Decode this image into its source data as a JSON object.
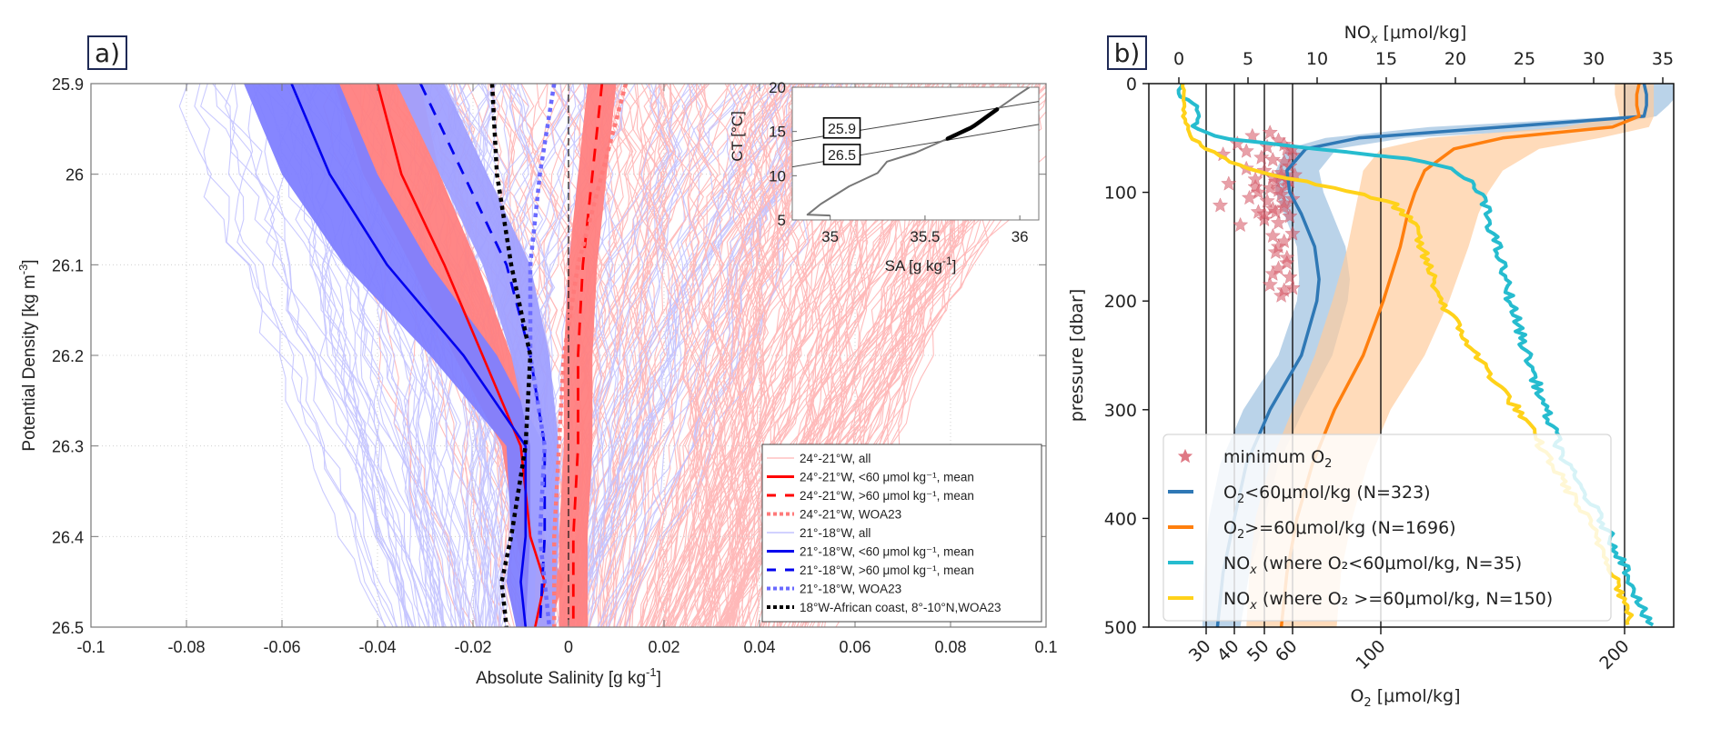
{
  "chart_data": [
    {
      "panel": "a)",
      "type": "line",
      "xlabel": "Absolute Salinity [g kg⁻¹]",
      "xlabel_main": "Absolute Salinity [g kg",
      "xlabel_sup": "-1",
      "ylabel_main": "Potential Density [kg m",
      "ylabel_sup": "-3",
      "xlim": [
        -0.1,
        0.1
      ],
      "ylim": [
        26.5,
        25.9
      ],
      "xticks": [
        -0.1,
        -0.08,
        -0.06,
        -0.04,
        -0.02,
        0,
        0.02,
        0.04,
        0.06,
        0.08,
        0.1
      ],
      "xtick_labels": [
        "-0.1",
        "-0.08",
        "-0.06",
        "-0.04",
        "-0.02",
        "0",
        "0.02",
        "0.04",
        "0.06",
        "0.08",
        "0.1"
      ],
      "yticks": [
        25.9,
        26.0,
        26.1,
        26.2,
        26.3,
        26.4,
        26.5
      ],
      "ytick_labels": [
        "25.9",
        "26",
        "26.1",
        "26.2",
        "26.3",
        "26.4",
        "26.5"
      ],
      "grid": true,
      "zero_line": 0,
      "legend_position": "bottom-right",
      "legend": [
        {
          "label": "24°-21°W, all",
          "color": "#ffb3b3",
          "style": "thin"
        },
        {
          "label": "24°-21°W, <60 μmol kg⁻¹, mean",
          "color": "#ff0000",
          "style": "solid"
        },
        {
          "label": "24°-21°W, >60 μmol kg⁻¹, mean",
          "color": "#ff0000",
          "style": "dashed"
        },
        {
          "label": "24°-21°W, WOA23",
          "color": "#ff7a7a",
          "style": "dotted"
        },
        {
          "label": "21°-18°W, all",
          "color": "#b8b8ff",
          "style": "thin"
        },
        {
          "label": "21°-18°W, <60 μmol kg⁻¹, mean",
          "color": "#0000ee",
          "style": "solid"
        },
        {
          "label": "21°-18°W, >60 μmol kg⁻¹, mean",
          "color": "#0000ee",
          "style": "dashed"
        },
        {
          "label": "21°-18°W, WOA23",
          "color": "#6a6aff",
          "style": "dotted"
        },
        {
          "label": "18°W-African coast, 8°-10°N,WOA23",
          "color": "#000000",
          "style": "dotted"
        }
      ],
      "series": [
        {
          "name": "24-21W <60 mean",
          "color": "#ff0000",
          "style": "solid",
          "band_color": "#ff8080",
          "density": [
            25.9,
            26.0,
            26.1,
            26.2,
            26.3,
            26.4,
            26.45,
            26.5
          ],
          "sa": [
            -0.04,
            -0.035,
            -0.026,
            -0.018,
            -0.01,
            -0.008,
            -0.005,
            -0.007
          ],
          "band_halfwidth": [
            0.009,
            0.008,
            0.007,
            0.006,
            0.004,
            0.003,
            0.004,
            0.003
          ]
        },
        {
          "name": "24-21W >60 mean",
          "color": "#ff0000",
          "style": "dashed",
          "band_color": "#ff8080",
          "density": [
            25.9,
            26.0,
            26.1,
            26.2,
            26.3,
            26.4,
            26.5
          ],
          "sa": [
            0.007,
            0.005,
            0.003,
            0.002,
            0.002,
            0.001,
            0.001
          ],
          "band_halfwidth": [
            0.003,
            0.003,
            0.003,
            0.003,
            0.003,
            0.003,
            0.003
          ]
        },
        {
          "name": "24-21W WOA23",
          "color": "#ff7a7a",
          "style": "dotted",
          "density": [
            25.9,
            26.0,
            26.1,
            26.2,
            26.3,
            26.4,
            26.5
          ],
          "sa": [
            0.012,
            0.007,
            0.002,
            -0.001,
            -0.002,
            -0.003,
            -0.003
          ]
        },
        {
          "name": "21-18W <60 mean",
          "color": "#0000ee",
          "style": "solid",
          "band_color": "#8080ff",
          "density": [
            25.9,
            26.0,
            26.1,
            26.2,
            26.3,
            26.4,
            26.45,
            26.5
          ],
          "sa": [
            -0.058,
            -0.05,
            -0.038,
            -0.022,
            -0.009,
            -0.009,
            -0.01,
            -0.009
          ],
          "band_halfwidth": [
            0.01,
            0.01,
            0.009,
            0.007,
            0.004,
            0.003,
            0.003,
            0.002
          ]
        },
        {
          "name": "21-18W >60 mean",
          "color": "#0000ee",
          "style": "dashed",
          "band_color": "#a0a0ff",
          "density": [
            25.9,
            26.0,
            26.1,
            26.2,
            26.3,
            26.4,
            26.5
          ],
          "sa": [
            -0.031,
            -0.022,
            -0.013,
            -0.008,
            -0.005,
            -0.005,
            -0.006
          ],
          "band_halfwidth": [
            0.005,
            0.005,
            0.005,
            0.004,
            0.003,
            0.003,
            0.003
          ]
        },
        {
          "name": "21-18W WOA23",
          "color": "#6a6aff",
          "style": "dotted",
          "density": [
            25.9,
            26.0,
            26.1,
            26.2,
            26.3,
            26.4,
            26.5
          ],
          "sa": [
            -0.003,
            -0.006,
            -0.008,
            -0.008,
            -0.005,
            -0.006,
            -0.004
          ]
        },
        {
          "name": "18W-African coast WOA23",
          "color": "#000000",
          "style": "dotted",
          "density": [
            25.9,
            26.0,
            26.1,
            26.2,
            26.3,
            26.4,
            26.45,
            26.5
          ],
          "sa": [
            -0.016,
            -0.015,
            -0.012,
            -0.008,
            -0.009,
            -0.012,
            -0.014,
            -0.013
          ]
        }
      ],
      "inset": {
        "xlabel_main": "SA [g kg",
        "xlabel_sup": "-1",
        "ylabel": "CT [°C]",
        "xlim": [
          34.8,
          36.1
        ],
        "ylim": [
          5,
          20
        ],
        "xticks": [
          35,
          35.5,
          36
        ],
        "xtick_labels": [
          "35",
          "35.5",
          "36"
        ],
        "yticks": [
          5,
          10,
          15,
          20
        ],
        "ytick_labels": [
          "5",
          "10",
          "15",
          "20"
        ],
        "isopycnals": [
          {
            "label": "25.9"
          },
          {
            "label": "26.5"
          }
        ],
        "ts_curve": {
          "sa": [
            35.0,
            34.88,
            34.95,
            35.1,
            35.25,
            35.3,
            35.45,
            35.62,
            35.75,
            35.88,
            35.98,
            36.05
          ],
          "ct": [
            5.5,
            5.6,
            6.8,
            8.8,
            10.3,
            11.6,
            12.6,
            14.2,
            15.5,
            17.5,
            19.0,
            20.0
          ]
        },
        "highlight_range": {
          "sa": [
            35.62,
            35.88
          ]
        }
      }
    },
    {
      "panel": "b)",
      "type": "line",
      "xlabel_bottom_main": "O",
      "xlabel_bottom_sub": "2",
      "xlabel_bottom_rest": " [μmol/kg]",
      "xlabel_top_main": "NO",
      "xlabel_top_sub": "x",
      "xlabel_top_rest": " [μmol/kg]",
      "ylabel": "pressure [dbar]",
      "ylim": [
        500,
        0
      ],
      "yticks": [
        0,
        100,
        200,
        300,
        400,
        500
      ],
      "ytick_labels": [
        "0",
        "100",
        "200",
        "300",
        "400",
        "500"
      ],
      "top_xlim": [
        -1.2,
        37.6
      ],
      "top_xticks": [
        0,
        5,
        10,
        15,
        20,
        25,
        30,
        35
      ],
      "top_xtick_labels": [
        "0",
        "5",
        "10",
        "15",
        "20",
        "25",
        "30",
        "35"
      ],
      "bottom_xticks": [
        30,
        40,
        50,
        60,
        100,
        200
      ],
      "bottom_xtick_labels": [
        "30",
        "40",
        "50",
        "60",
        "100",
        "200"
      ],
      "vertical_reference_lines_o2": [
        30,
        40,
        50,
        60,
        100,
        200
      ],
      "legend_position": "lower-left",
      "legend": [
        {
          "label_main": "minimum O",
          "label_sub": "2",
          "label_rest": "",
          "color": "#d9606e",
          "marker": "star"
        },
        {
          "label_main": "O",
          "label_sub": "2",
          "label_rest": "<60μmol/kg (N=323)",
          "color": "#2f78b5",
          "marker": "line"
        },
        {
          "label_main": "O",
          "label_sub": "2",
          "label_rest": ">=60μmol/kg (N=1696)",
          "color": "#ff7f0e",
          "marker": "line"
        },
        {
          "label_main": "NO",
          "label_sub": "x",
          "label_rest": " (where O₂<60μmol/kg, N=35)",
          "color": "#26bccf",
          "marker": "line"
        },
        {
          "label_main": "NO",
          "label_sub": "x",
          "label_rest": " (where O₂ >=60μmol/kg, N=150)",
          "color": "#ffd21a",
          "marker": "line"
        }
      ],
      "series": [
        {
          "name": "O2<60 mean",
          "axis": "O2",
          "color": "#2f78b5",
          "band_color": "#9cc0e0",
          "pressure": [
            0,
            10,
            20,
            30,
            40,
            50,
            60,
            80,
            100,
            120,
            150,
            180,
            200,
            250,
            300,
            350,
            400,
            450,
            500
          ],
          "value": [
            208,
            209,
            209,
            208,
            150,
            90,
            66,
            58,
            59,
            64,
            70,
            72,
            71,
            64,
            52,
            44,
            40,
            36,
            34
          ],
          "band_lo": [
            200,
            200,
            200,
            200,
            120,
            75,
            58,
            54,
            54,
            57,
            62,
            63,
            62,
            55,
            43,
            35,
            31,
            29,
            28
          ],
          "band_hi": [
            222,
            222,
            218,
            213,
            190,
            110,
            80,
            72,
            74,
            78,
            84,
            86,
            85,
            78,
            65,
            55,
            50,
            45,
            42
          ]
        },
        {
          "name": "O2>=60 mean",
          "axis": "O2",
          "color": "#ff7f0e",
          "band_color": "#ffcc9c",
          "pressure": [
            0,
            10,
            20,
            30,
            40,
            50,
            60,
            80,
            100,
            120,
            150,
            200,
            250,
            300,
            350,
            400,
            450,
            500
          ],
          "value": [
            206,
            205,
            205,
            206,
            195,
            150,
            130,
            118,
            114,
            111,
            108,
            101,
            92,
            79,
            69,
            62,
            58,
            56
          ],
          "band_lo": [
            196,
            196,
            197,
            198,
            175,
            120,
            100,
            92,
            90,
            88,
            85,
            78,
            70,
            60,
            52,
            47,
            45,
            44
          ],
          "band_hi": [
            212,
            212,
            212,
            212,
            210,
            190,
            165,
            150,
            144,
            140,
            136,
            128,
            118,
            104,
            94,
            87,
            82,
            80
          ]
        },
        {
          "name": "NOx O2<60",
          "axis": "NOx",
          "color": "#26bccf",
          "pressure": [
            0,
            10,
            20,
            30,
            40,
            50,
            60,
            70,
            80,
            100,
            120,
            150,
            200,
            250,
            300,
            350,
            400,
            450,
            500
          ],
          "value": [
            0.3,
            0.0,
            1.2,
            1.5,
            1.0,
            3.0,
            10.0,
            17.0,
            20.0,
            21.8,
            22.3,
            23.0,
            24.0,
            25.2,
            26.5,
            28.0,
            30.5,
            32.5,
            34.0
          ]
        },
        {
          "name": "NOx O2>=60",
          "axis": "NOx",
          "color": "#ffd21a",
          "pressure": [
            0,
            10,
            20,
            30,
            40,
            50,
            60,
            70,
            80,
            90,
            100,
            110,
            130,
            150,
            200,
            250,
            300,
            350,
            400,
            450,
            500
          ],
          "value": [
            0.3,
            0.4,
            0.3,
            0.4,
            0.6,
            1.0,
            2.0,
            3.5,
            5.5,
            9.0,
            12.5,
            15.5,
            17.0,
            17.5,
            19.0,
            21.5,
            24.5,
            27.0,
            29.5,
            31.5,
            32.8
          ]
        }
      ],
      "minimum_o2_stars": {
        "color": "#d9606e",
        "o2": [
          41,
          46,
          52,
          55,
          58,
          49,
          53,
          57,
          60,
          44,
          50,
          56,
          59,
          38,
          47,
          54,
          58,
          61,
          45,
          51,
          56,
          35,
          48,
          53,
          57,
          60,
          42,
          50,
          55,
          59,
          53,
          57,
          54,
          58,
          55,
          59,
          52,
          57,
          56,
          60,
          53,
          58,
          55,
          48,
          36,
          44,
          51,
          57,
          60,
          52,
          55,
          58,
          47,
          53,
          56,
          59,
          50,
          54,
          57,
          60
        ],
        "pressure": [
          55,
          48,
          45,
          52,
          60,
          68,
          70,
          72,
          66,
          78,
          80,
          85,
          76,
          92,
          95,
          90,
          88,
          84,
          105,
          108,
          102,
          112,
          118,
          115,
          110,
          106,
          130,
          125,
          128,
          122,
          140,
          145,
          155,
          160,
          170,
          178,
          185,
          190,
          195,
          188,
          175,
          165,
          150,
          100,
          65,
          62,
          58,
          56,
          60,
          96,
          98,
          94,
          88,
          86,
          82,
          90,
          120,
          118,
          114,
          138
        ]
      }
    }
  ],
  "panel_labels": {
    "a": "a)",
    "b": "b)"
  }
}
